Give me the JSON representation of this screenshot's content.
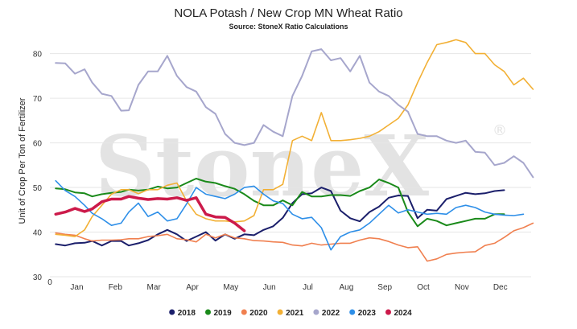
{
  "title": "NOLA Potash / New Crop MN Wheat Ratio",
  "subtitle": "Source: StoneX Ratio Calculations",
  "watermark": "StoneX",
  "watermark_mark": "®",
  "chart_data": {
    "type": "line",
    "ylabel": "Unit of Crop Per Ton of Fertilizer",
    "ylim": [
      30,
      83
    ],
    "yticks": [
      30,
      40,
      50,
      60,
      70,
      80
    ],
    "xlim": [
      0,
      12.5
    ],
    "origin_label": "0",
    "months": [
      "Jan",
      "Feb",
      "Mar",
      "Apr",
      "May",
      "Jun",
      "Jul",
      "Aug",
      "Sep",
      "Oct",
      "Nov",
      "Dec"
    ],
    "grid": "horizontal",
    "legend_position": "bottom",
    "series": [
      {
        "name": "2018",
        "color": "#1b1f6b",
        "width": 2,
        "x": [
          0.15,
          0.4,
          0.65,
          0.9,
          1.1,
          1.35,
          1.6,
          1.85,
          2.05,
          2.3,
          2.55,
          2.8,
          3.05,
          3.3,
          3.55,
          3.8,
          4.05,
          4.3,
          4.55,
          4.8,
          5.05,
          5.3,
          5.55,
          5.8,
          6.05,
          6.3,
          6.55,
          6.8,
          7.05,
          7.3,
          7.55,
          7.8,
          8.05,
          8.3,
          8.55,
          8.8,
          9.05,
          9.3,
          9.55,
          9.8,
          10.05,
          10.3,
          10.55,
          10.8,
          11.05,
          11.3,
          11.55,
          11.8
        ],
        "y": [
          37.3,
          37,
          37.5,
          37.6,
          38,
          37,
          38,
          38,
          37,
          37.5,
          38.2,
          39.5,
          40.5,
          39.5,
          38,
          39,
          40,
          38.1,
          39.5,
          38.5,
          39.5,
          39.3,
          40.5,
          41.3,
          43.2,
          46.5,
          48.5,
          48.7,
          50,
          49.2,
          44.8,
          43.1,
          42.4,
          44.5,
          45.7,
          47.7,
          48.2,
          48.1,
          43.1,
          45,
          44.8,
          47.4,
          48.1,
          48.8,
          48.5,
          48.7,
          49.2,
          49.4
        ]
      },
      {
        "name": "2019",
        "color": "#1a8a1a",
        "width": 2,
        "x": [
          0.15,
          0.4,
          0.65,
          0.9,
          1.1,
          1.35,
          1.6,
          1.85,
          2.05,
          2.3,
          2.55,
          2.8,
          3.05,
          3.3,
          3.55,
          3.8,
          4.05,
          4.3,
          4.55,
          4.8,
          5.05,
          5.3,
          5.55,
          5.8,
          6.05,
          6.3,
          6.55,
          6.8,
          7.05,
          7.3,
          7.55,
          7.8,
          8.05,
          8.3,
          8.55,
          8.8,
          9.05,
          9.3,
          9.55,
          9.8,
          10.05,
          10.3,
          10.55,
          10.8,
          11.05,
          11.3,
          11.55,
          11.8
        ],
        "y": [
          49.8,
          49.6,
          48.9,
          48.7,
          48,
          48.5,
          48.8,
          49,
          49.5,
          49.3,
          49.5,
          50.2,
          49.8,
          50,
          51,
          52,
          51.3,
          51,
          50.3,
          49.7,
          48.5,
          47,
          46,
          46,
          47.1,
          46,
          49,
          48,
          48,
          48.3,
          48.3,
          48.1,
          49.2,
          50,
          51.8,
          51,
          50,
          44.5,
          41.3,
          43,
          42.5,
          41.5,
          42,
          42.5,
          43,
          43,
          44,
          44
        ]
      },
      {
        "name": "2020",
        "color": "#f08050",
        "width": 1.6,
        "x": [
          0.15,
          0.4,
          0.65,
          0.9,
          1.1,
          1.35,
          1.6,
          1.85,
          2.05,
          2.3,
          2.55,
          2.8,
          3.05,
          3.3,
          3.55,
          3.8,
          4.05,
          4.3,
          4.55,
          4.8,
          5.05,
          5.3,
          5.55,
          5.8,
          6.05,
          6.3,
          6.55,
          6.8,
          7.05,
          7.3,
          7.55,
          7.8,
          8.05,
          8.3,
          8.55,
          8.8,
          9.05,
          9.3,
          9.55,
          9.8,
          10.05,
          10.3,
          10.55,
          10.8,
          11.05,
          11.3,
          11.55,
          11.8,
          12.05,
          12.3,
          12.55
        ],
        "y": [
          39.8,
          39.5,
          39.3,
          38.5,
          38,
          38.2,
          38.2,
          38.3,
          38.5,
          38.5,
          39,
          39.2,
          39.5,
          38.5,
          38.3,
          37.8,
          39.5,
          38.7,
          39.5,
          38.7,
          38.5,
          38.1,
          38,
          37.8,
          37.7,
          37.1,
          36.9,
          37.5,
          37.1,
          37.3,
          37.5,
          37.5,
          38.2,
          38.7,
          38.5,
          37.9,
          37.1,
          36.5,
          36.7,
          33.5,
          34,
          35,
          35.3,
          35.5,
          35.6,
          37,
          37.5,
          38.8,
          40.3,
          41,
          42
        ]
      },
      {
        "name": "2021",
        "color": "#f2b035",
        "width": 1.6,
        "x": [
          0.15,
          0.4,
          0.65,
          0.9,
          1.1,
          1.35,
          1.6,
          1.85,
          2.05,
          2.3,
          2.55,
          2.8,
          3.05,
          3.3,
          3.55,
          3.8,
          4.05,
          4.3,
          4.55,
          4.8,
          5.05,
          5.3,
          5.55,
          5.8,
          6.05,
          6.3,
          6.55,
          6.8,
          7.05,
          7.3,
          7.55,
          7.8,
          8.05,
          8.3,
          8.55,
          8.8,
          9.05,
          9.3,
          9.55,
          9.8,
          10.05,
          10.3,
          10.55,
          10.8,
          11.05,
          11.3,
          11.55,
          11.8,
          12.05,
          12.3,
          12.55
        ],
        "y": [
          39.5,
          39.3,
          39,
          40.5,
          43.5,
          46,
          48.5,
          49.5,
          49.5,
          48.6,
          49.5,
          49.5,
          50.5,
          51,
          47,
          44,
          43,
          42.5,
          42.5,
          42.3,
          42.5,
          43.7,
          49.5,
          49.5,
          50.7,
          60.5,
          61.5,
          60.5,
          66.8,
          60.5,
          60.5,
          60.7,
          61,
          61.5,
          62.5,
          64,
          65.5,
          68.5,
          73.5,
          78,
          82,
          82.5,
          83.1,
          82.5,
          80,
          80,
          77.5,
          76,
          73,
          74.5,
          72
        ]
      },
      {
        "name": "2022",
        "color": "#a6a6cc",
        "width": 2,
        "x": [
          0.15,
          0.4,
          0.65,
          0.9,
          1.1,
          1.35,
          1.6,
          1.85,
          2.05,
          2.3,
          2.55,
          2.8,
          3.05,
          3.3,
          3.55,
          3.8,
          4.05,
          4.3,
          4.55,
          4.8,
          5.05,
          5.3,
          5.55,
          5.8,
          6.05,
          6.3,
          6.55,
          6.8,
          7.05,
          7.3,
          7.55,
          7.8,
          8.05,
          8.3,
          8.55,
          8.8,
          9.05,
          9.3,
          9.55,
          9.8,
          10.05,
          10.3,
          10.55,
          10.8,
          11.05,
          11.3,
          11.55,
          11.8,
          12.05,
          12.3,
          12.55
        ],
        "y": [
          77.9,
          77.8,
          75.5,
          76.5,
          73.5,
          71,
          70.5,
          67.2,
          67.3,
          73,
          76,
          76,
          79.5,
          75,
          72.5,
          71.5,
          68,
          66.5,
          62,
          60,
          59.5,
          60,
          64,
          62.5,
          61.5,
          70.5,
          75,
          80.5,
          81,
          78.5,
          79,
          76,
          79.5,
          73.5,
          71.5,
          70.5,
          68.5,
          67,
          62,
          61.5,
          61.5,
          60.5,
          60,
          60.5,
          58,
          57.8,
          55,
          55.5,
          57,
          55.5,
          52.3
        ]
      },
      {
        "name": "2023",
        "color": "#2e8fe8",
        "width": 1.6,
        "x": [
          0.15,
          0.4,
          0.65,
          0.9,
          1.1,
          1.35,
          1.6,
          1.85,
          2.05,
          2.3,
          2.55,
          2.8,
          3.05,
          3.3,
          3.55,
          3.8,
          4.05,
          4.3,
          4.55,
          4.8,
          5.05,
          5.3,
          5.55,
          5.8,
          6.05,
          6.3,
          6.55,
          6.8,
          7.05,
          7.3,
          7.55,
          7.8,
          8.05,
          8.3,
          8.55,
          8.8,
          9.05,
          9.3,
          9.55,
          9.8,
          10.05,
          10.3,
          10.55,
          10.8,
          11.05,
          11.3,
          11.55,
          11.8,
          12.05,
          12.3
        ],
        "y": [
          51.5,
          49.3,
          48,
          46,
          44.2,
          43,
          41.5,
          42,
          44.5,
          46.5,
          43.5,
          44.5,
          42.5,
          43,
          46.3,
          50,
          48.5,
          48,
          47.5,
          48.5,
          50,
          50.3,
          48.5,
          47,
          46.4,
          44,
          43,
          43.3,
          41,
          36,
          39,
          40,
          40.5,
          42,
          44,
          46,
          44.3,
          45,
          44.5,
          44,
          44.2,
          44,
          45.5,
          46,
          45.5,
          44.5,
          44,
          43.8,
          43.7,
          44
        ]
      },
      {
        "name": "2024",
        "color": "#cc1a4a",
        "width": 3.5,
        "x": [
          0.15,
          0.4,
          0.65,
          0.9,
          1.1,
          1.35,
          1.6,
          1.85,
          2.05,
          2.3,
          2.55,
          2.8,
          3.05,
          3.3,
          3.55,
          3.8,
          4.05,
          4.3,
          4.55,
          4.8,
          5.05
        ],
        "y": [
          44,
          44.5,
          45.3,
          44.6,
          45.2,
          46.8,
          47.4,
          47.4,
          48,
          47.6,
          47.3,
          47.5,
          47.4,
          47.7,
          47.1,
          47.7,
          44,
          43.4,
          43.3,
          42,
          40.3
        ]
      }
    ]
  }
}
